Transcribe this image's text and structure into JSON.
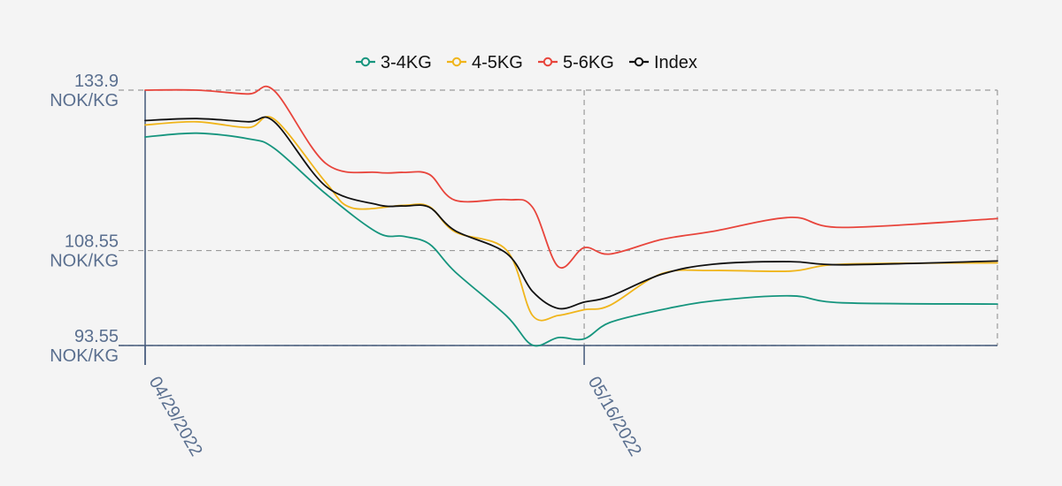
{
  "chart_data": {
    "type": "line",
    "x_axis": {
      "type": "date",
      "range": [
        "2022-04-29",
        "2022-06-01"
      ],
      "ticks": [
        {
          "value": "2022-04-29",
          "label": "04/29/2022"
        },
        {
          "value": "2022-05-16",
          "label": "05/16/2022"
        }
      ]
    },
    "y_axis": {
      "range": [
        93.55,
        133.9
      ],
      "ticks": [
        {
          "value": 133.9,
          "line1": "133.9",
          "line2": "NOK/KG"
        },
        {
          "value": 108.55,
          "line1": "108.55",
          "line2": "NOK/KG"
        },
        {
          "value": 93.55,
          "line1": "93.55",
          "line2": "NOK/KG"
        }
      ]
    },
    "grid": true,
    "legend_position": "top-center",
    "series": [
      {
        "name": "3-4KG",
        "color": "#16957e",
        "points": [
          [
            "2022-04-29",
            126.5
          ],
          [
            "2022-05-01",
            127.1
          ],
          [
            "2022-05-03",
            126.2
          ],
          [
            "2022-05-04",
            124.7
          ],
          [
            "2022-05-06",
            117.5
          ],
          [
            "2022-05-08",
            111.4
          ],
          [
            "2022-05-09",
            110.8
          ],
          [
            "2022-05-10",
            109.6
          ],
          [
            "2022-05-11",
            105.2
          ],
          [
            "2022-05-13",
            98.2
          ],
          [
            "2022-05-14",
            93.6
          ],
          [
            "2022-05-15",
            94.8
          ],
          [
            "2022-05-16",
            94.6
          ],
          [
            "2022-05-17",
            97.2
          ],
          [
            "2022-05-19",
            99.2
          ],
          [
            "2022-05-21",
            100.6
          ],
          [
            "2022-05-24",
            101.4
          ],
          [
            "2022-05-26",
            100.3
          ],
          [
            "2022-06-01",
            100.1
          ]
        ]
      },
      {
        "name": "4-5KG",
        "color": "#f0b51b",
        "points": [
          [
            "2022-04-29",
            128.4
          ],
          [
            "2022-05-01",
            128.9
          ],
          [
            "2022-05-03",
            128.0
          ],
          [
            "2022-05-04",
            129.3
          ],
          [
            "2022-05-06",
            119.3
          ],
          [
            "2022-05-07",
            115.3
          ],
          [
            "2022-05-09",
            115.7
          ],
          [
            "2022-05-10",
            115.5
          ],
          [
            "2022-05-11",
            111.5
          ],
          [
            "2022-05-13",
            108.6
          ],
          [
            "2022-05-14",
            98.3
          ],
          [
            "2022-05-15",
            98.3
          ],
          [
            "2022-05-16",
            99.2
          ],
          [
            "2022-05-17",
            99.9
          ],
          [
            "2022-05-19",
            104.9
          ],
          [
            "2022-05-21",
            105.4
          ],
          [
            "2022-05-24",
            105.3
          ],
          [
            "2022-05-26",
            106.4
          ],
          [
            "2022-06-01",
            106.6
          ]
        ]
      },
      {
        "name": "5-6KG",
        "color": "#e8453c",
        "points": [
          [
            "2022-04-29",
            133.9
          ],
          [
            "2022-05-01",
            133.9
          ],
          [
            "2022-05-03",
            133.3
          ],
          [
            "2022-05-04",
            133.8
          ],
          [
            "2022-05-06",
            122.3
          ],
          [
            "2022-05-08",
            120.9
          ],
          [
            "2022-05-09",
            120.9
          ],
          [
            "2022-05-10",
            120.6
          ],
          [
            "2022-05-11",
            116.5
          ],
          [
            "2022-05-13",
            116.6
          ],
          [
            "2022-05-14",
            115.4
          ],
          [
            "2022-05-15",
            106.0
          ],
          [
            "2022-05-16",
            109.0
          ],
          [
            "2022-05-17",
            108.0
          ],
          [
            "2022-05-19",
            110.3
          ],
          [
            "2022-05-21",
            111.6
          ],
          [
            "2022-05-24",
            113.8
          ],
          [
            "2022-05-26",
            112.2
          ],
          [
            "2022-06-01",
            113.6
          ]
        ]
      },
      {
        "name": "Index",
        "color": "#111111",
        "points": [
          [
            "2022-04-29",
            129.1
          ],
          [
            "2022-05-01",
            129.4
          ],
          [
            "2022-05-03",
            128.9
          ],
          [
            "2022-05-04",
            128.9
          ],
          [
            "2022-05-06",
            118.7
          ],
          [
            "2022-05-08",
            115.8
          ],
          [
            "2022-05-09",
            115.6
          ],
          [
            "2022-05-10",
            115.4
          ],
          [
            "2022-05-11",
            111.7
          ],
          [
            "2022-05-13",
            108.1
          ],
          [
            "2022-05-14",
            102.1
          ],
          [
            "2022-05-15",
            99.4
          ],
          [
            "2022-05-16",
            100.4
          ],
          [
            "2022-05-17",
            101.3
          ],
          [
            "2022-05-19",
            104.8
          ],
          [
            "2022-05-21",
            106.4
          ],
          [
            "2022-05-24",
            106.8
          ],
          [
            "2022-05-26",
            106.3
          ],
          [
            "2022-06-01",
            106.9
          ]
        ]
      }
    ]
  }
}
